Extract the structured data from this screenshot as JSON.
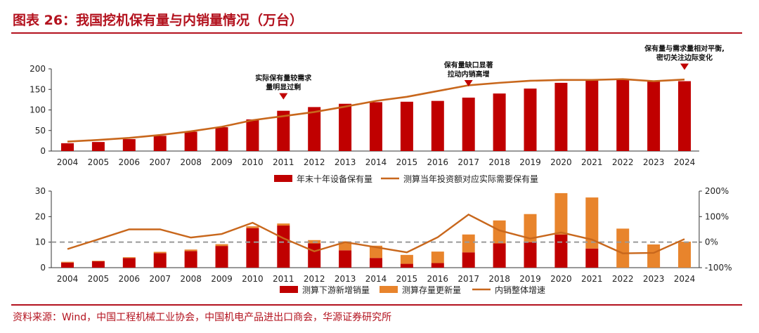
{
  "figure_title": "图表 26：我国挖机保有量与内销量情况（万台）",
  "source_note": "资料来源：Wind，中国工程机械工业协会，中国机电产品进出口商会，华源证券研究所",
  "colors": {
    "red": "#c00000",
    "orange": "#e8842c",
    "line": "#c8671c",
    "dashed": "#9a9a9a",
    "brand": "#b3121e"
  },
  "chart_data": [
    {
      "type": "bar",
      "categories": [
        "2004",
        "2005",
        "2006",
        "2007",
        "2008",
        "2009",
        "2010",
        "2011",
        "2012",
        "2013",
        "2014",
        "2015",
        "2016",
        "2017",
        "2018",
        "2019",
        "2020",
        "2021",
        "2022",
        "2023",
        "2024"
      ],
      "series": [
        {
          "name": "年末十年设备保有量",
          "kind": "bar",
          "color": "#c00000",
          "values": [
            19,
            22,
            29,
            37,
            47,
            58,
            77,
            98,
            107,
            115,
            119,
            120,
            122,
            130,
            140,
            152,
            166,
            173,
            174,
            170,
            170
          ]
        },
        {
          "name": "测算当年投资额对应实际需要保有量",
          "kind": "line",
          "color": "#c8671c",
          "values": [
            23,
            27,
            32,
            39,
            48,
            59,
            75,
            85,
            95,
            108,
            122,
            132,
            146,
            160,
            166,
            171,
            173,
            173,
            175,
            170,
            174
          ]
        }
      ],
      "ylim": [
        0,
        200
      ],
      "yticks": [
        0,
        50,
        100,
        150,
        200
      ],
      "annotations": [
        {
          "text_lines": [
            "实际保有量较需求",
            "量明显过剩"
          ],
          "category": "2011"
        },
        {
          "text_lines": [
            "保有量缺口显著",
            "拉动内销高增"
          ],
          "category": "2017"
        },
        {
          "text_lines": [
            "保有量与需求量相对平衡,",
            "密切关注边际变化"
          ],
          "category": "2024"
        }
      ]
    },
    {
      "type": "bar",
      "stacked": true,
      "categories": [
        "2004",
        "2005",
        "2006",
        "2007",
        "2008",
        "2009",
        "2010",
        "2011",
        "2012",
        "2013",
        "2014",
        "2015",
        "2016",
        "2017",
        "2018",
        "2019",
        "2020",
        "2021",
        "2022",
        "2023",
        "2024"
      ],
      "series": [
        {
          "name": "测算下游新增销量",
          "kind": "bar",
          "color": "#c00000",
          "values": [
            2,
            2.5,
            3.8,
            5.7,
            6.5,
            8.5,
            15.5,
            16.5,
            9.5,
            6.8,
            3.8,
            1.5,
            1.8,
            6.0,
            9.5,
            10.0,
            13.0,
            7.5,
            0,
            0,
            0
          ]
        },
        {
          "name": "测算存量更新量",
          "kind": "bar",
          "color": "#e8842c",
          "values": [
            0.3,
            0.2,
            0.3,
            0.5,
            0.6,
            0.7,
            0.7,
            0.8,
            1.3,
            3.5,
            4.8,
            3.5,
            4.5,
            7.0,
            9.0,
            11.0,
            16.2,
            20.0,
            15.3,
            9.1,
            10.2
          ]
        },
        {
          "name": "内销整体增速",
          "kind": "line",
          "axis": "right",
          "color": "#c8671c",
          "values": [
            -0.27,
            0.11,
            0.5,
            0.5,
            0.18,
            0.32,
            0.76,
            0.15,
            -0.36,
            0.0,
            -0.2,
            -0.4,
            0.19,
            1.08,
            0.46,
            0.14,
            0.38,
            0.1,
            -0.44,
            -0.42,
            0.12
          ]
        }
      ],
      "ylim": [
        0,
        30
      ],
      "yticks": [
        0,
        10,
        20,
        30
      ],
      "y2lim": [
        -1.0,
        2.0
      ],
      "y2ticks": [
        -1.0,
        0,
        1.0,
        2.0
      ],
      "y2ticklabels": [
        "-100%",
        "0%",
        "100%",
        "200%"
      ],
      "reference_line": {
        "axis": "right",
        "value": 0
      }
    }
  ]
}
